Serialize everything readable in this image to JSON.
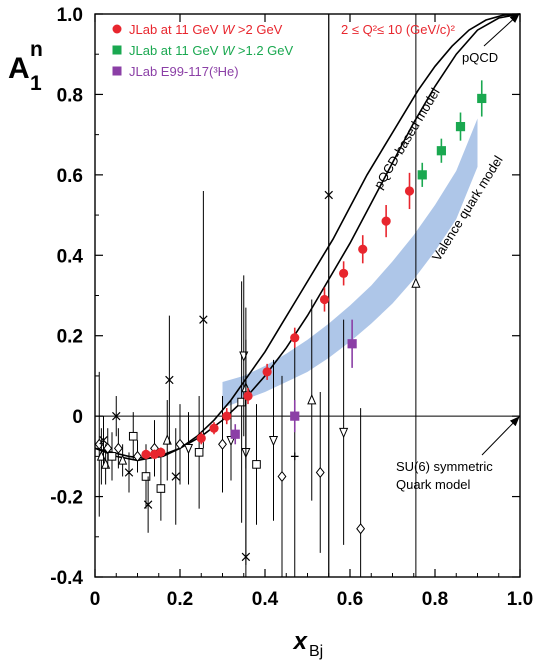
{
  "chart_data": {
    "type": "scatter",
    "title": "",
    "ylabel": "A",
    "ylabel_sup": "n",
    "ylabel_sub": "1",
    "xlabel": "x",
    "xlabel_sub": "Bj",
    "xlim": [
      0,
      1
    ],
    "ylim": [
      -0.4,
      1
    ],
    "xticks": [
      "0",
      "0.2",
      "0.4",
      "0.6",
      "0.8",
      "1.0"
    ],
    "yticks": [
      "-0.4",
      "-0.2",
      "0",
      "0.2",
      "0.4",
      "0.6",
      "0.8",
      "1.0"
    ],
    "x_tick_values": [
      0,
      0.2,
      0.4,
      0.6,
      0.8,
      1.0
    ],
    "y_tick_values": [
      -0.4,
      -0.2,
      0,
      0.2,
      0.4,
      0.6,
      0.8,
      1.0
    ],
    "q2_range": "2 ≤ Q²≤ 10 (GeV/c)²",
    "series": [
      {
        "name": "JLab at 11 GeV W >2 GeV",
        "name_prefix": "JLab at 11 GeV ",
        "name_italic": "W",
        "name_suffix": " >2 GeV",
        "color": "#e8262e",
        "marker": "circle",
        "x": [
          0.12,
          0.14,
          0.155,
          0.25,
          0.28,
          0.31,
          0.36,
          0.405,
          0.47,
          0.54,
          0.585,
          0.63,
          0.685,
          0.74
        ],
        "y": [
          -0.095,
          -0.095,
          -0.09,
          -0.055,
          -0.03,
          0.0,
          0.05,
          0.11,
          0.195,
          0.29,
          0.355,
          0.415,
          0.485,
          0.56
        ],
        "err": [
          0.012,
          0.012,
          0.012,
          0.015,
          0.015,
          0.02,
          0.02,
          0.02,
          0.025,
          0.03,
          0.03,
          0.035,
          0.04,
          0.045
        ]
      },
      {
        "name": "JLab at 11 GeV W >1.2 GeV",
        "name_prefix": "JLab at 11 GeV ",
        "name_italic": "W",
        "name_suffix": " >1.2 GeV",
        "color": "#1aa850",
        "marker": "square",
        "x": [
          0.77,
          0.815,
          0.86,
          0.91
        ],
        "y": [
          0.6,
          0.66,
          0.72,
          0.79
        ],
        "err": [
          0.03,
          0.03,
          0.035,
          0.045
        ]
      },
      {
        "name": "JLab E99-117(³He)",
        "color": "#8b3fa6",
        "marker": "square",
        "x": [
          0.33,
          0.47,
          0.605
        ],
        "y": [
          -0.045,
          0.0,
          0.18
        ],
        "err": [
          0.025,
          0.04,
          0.06
        ]
      }
    ],
    "world_data": {
      "color": "#000000",
      "points": [
        {
          "x": 0.01,
          "y": -0.07,
          "err": 0.18,
          "m": "diamond"
        },
        {
          "x": 0.015,
          "y": -0.1,
          "err": 0.07,
          "m": "tri-up"
        },
        {
          "x": 0.02,
          "y": -0.06,
          "err": 0.06,
          "m": "cross"
        },
        {
          "x": 0.025,
          "y": -0.12,
          "err": 0.05,
          "m": "tri-up"
        },
        {
          "x": 0.03,
          "y": -0.08,
          "err": 0.05,
          "m": "diamond"
        },
        {
          "x": 0.04,
          "y": -0.1,
          "err": 0.06,
          "m": "square"
        },
        {
          "x": 0.05,
          "y": 0.0,
          "err": 0.05,
          "m": "cross"
        },
        {
          "x": 0.055,
          "y": -0.08,
          "err": 0.05,
          "m": "diamond"
        },
        {
          "x": 0.065,
          "y": -0.11,
          "err": 0.04,
          "m": "tri-up"
        },
        {
          "x": 0.08,
          "y": -0.14,
          "err": 0.05,
          "m": "cross"
        },
        {
          "x": 0.09,
          "y": -0.05,
          "err": 0.06,
          "m": "square"
        },
        {
          "x": 0.1,
          "y": -0.1,
          "err": 0.04,
          "m": "diamond"
        },
        {
          "x": 0.12,
          "y": -0.15,
          "err": 0.08,
          "m": "square"
        },
        {
          "x": 0.125,
          "y": -0.22,
          "err": 0.07,
          "m": "cross"
        },
        {
          "x": 0.14,
          "y": -0.08,
          "err": 0.07,
          "m": "diamond"
        },
        {
          "x": 0.155,
          "y": -0.18,
          "err": 0.08,
          "m": "square"
        },
        {
          "x": 0.17,
          "y": -0.06,
          "err": 0.1,
          "m": "tri-up"
        },
        {
          "x": 0.175,
          "y": 0.09,
          "err": 0.16,
          "m": "cross"
        },
        {
          "x": 0.19,
          "y": -0.15,
          "err": 0.12,
          "m": "cross"
        },
        {
          "x": 0.2,
          "y": -0.07,
          "err": 0.1,
          "m": "diamond"
        },
        {
          "x": 0.22,
          "y": -0.08,
          "err": 0.09,
          "m": "tri-down"
        },
        {
          "x": 0.245,
          "y": -0.09,
          "err": 0.14,
          "m": "square"
        },
        {
          "x": 0.255,
          "y": 0.24,
          "err": 0.32,
          "m": "cross"
        },
        {
          "x": 0.3,
          "y": -0.07,
          "err": 0.12,
          "m": "diamond"
        },
        {
          "x": 0.32,
          "y": -0.06,
          "err": 0.1,
          "m": "tri-down"
        },
        {
          "x": 0.345,
          "y": 0.035,
          "err": 0.3,
          "m": "square"
        },
        {
          "x": 0.35,
          "y": 0.15,
          "err": 0.2,
          "m": "tri-down"
        },
        {
          "x": 0.355,
          "y": 0.07,
          "err": 0.2,
          "m": "tri-up"
        },
        {
          "x": 0.355,
          "y": -0.09,
          "err": 0.28,
          "m": "tri-down"
        },
        {
          "x": 0.355,
          "y": -0.35,
          "err": 0.45,
          "m": "cross"
        },
        {
          "x": 0.38,
          "y": -0.12,
          "err": 0.15,
          "m": "square"
        },
        {
          "x": 0.42,
          "y": -0.06,
          "err": 0.2,
          "m": "tri-down"
        },
        {
          "x": 0.44,
          "y": -0.15,
          "err": 0.25,
          "m": "diamond"
        },
        {
          "x": 0.47,
          "y": -0.1,
          "err": 0.3,
          "m": "plus"
        },
        {
          "x": 0.51,
          "y": 0.04,
          "err": 0.25,
          "m": "tri-up"
        },
        {
          "x": 0.53,
          "y": -0.14,
          "err": 0.2,
          "m": "diamond"
        },
        {
          "x": 0.55,
          "y": 0.55,
          "err": 0.98,
          "m": "cross"
        },
        {
          "x": 0.585,
          "y": -0.04,
          "err": 0.28,
          "m": "tri-down"
        },
        {
          "x": 0.625,
          "y": -0.28,
          "err": 0.3,
          "m": "diamond"
        },
        {
          "x": 0.755,
          "y": 0.33,
          "err": 0.9,
          "m": "tri-up"
        }
      ]
    },
    "models": [
      {
        "name": "pQCD",
        "label": "pQCD",
        "x": [
          0.0,
          0.08,
          0.12,
          0.16,
          0.2,
          0.24,
          0.28,
          0.32,
          0.36,
          0.4,
          0.44,
          0.48,
          0.52,
          0.56,
          0.6,
          0.64,
          0.68,
          0.72,
          0.76,
          0.8,
          0.84,
          0.88,
          0.92,
          0.96,
          1.0
        ],
        "y": [
          -0.08,
          -0.1,
          -0.105,
          -0.1,
          -0.08,
          -0.05,
          -0.01,
          0.04,
          0.1,
          0.16,
          0.23,
          0.3,
          0.37,
          0.44,
          0.52,
          0.6,
          0.67,
          0.74,
          0.81,
          0.87,
          0.92,
          0.96,
          0.985,
          0.997,
          1.0
        ]
      },
      {
        "name": "pQCD-based model",
        "label": "pQCD-based model",
        "x": [
          0.0,
          0.05,
          0.1,
          0.15,
          0.2,
          0.25,
          0.3,
          0.35,
          0.4,
          0.45,
          0.5,
          0.55,
          0.6,
          0.65,
          0.7,
          0.75,
          0.8,
          0.85,
          0.9,
          0.95,
          1.0
        ],
        "y": [
          -0.08,
          -0.1,
          -0.11,
          -0.1,
          -0.08,
          -0.05,
          -0.01,
          0.04,
          0.1,
          0.17,
          0.25,
          0.34,
          0.43,
          0.53,
          0.63,
          0.73,
          0.82,
          0.9,
          0.96,
          0.99,
          1.0
        ]
      }
    ],
    "band": {
      "name": "Valence quark model",
      "label": "Valence quark model",
      "color": "#aec6e8",
      "x": [
        0.3,
        0.35,
        0.4,
        0.45,
        0.5,
        0.55,
        0.6,
        0.65,
        0.7,
        0.75,
        0.8,
        0.85,
        0.9
      ],
      "y_low": [
        0.02,
        0.04,
        0.06,
        0.085,
        0.11,
        0.145,
        0.185,
        0.23,
        0.28,
        0.34,
        0.41,
        0.49,
        0.62
      ],
      "y_high": [
        0.085,
        0.1,
        0.125,
        0.155,
        0.19,
        0.23,
        0.275,
        0.325,
        0.385,
        0.45,
        0.525,
        0.61,
        0.74
      ]
    },
    "su6": {
      "label_line1": "SU(6) symmetric",
      "label_line2": "Quark model",
      "y": 0.0
    },
    "vertical_line_x": 0.55
  }
}
